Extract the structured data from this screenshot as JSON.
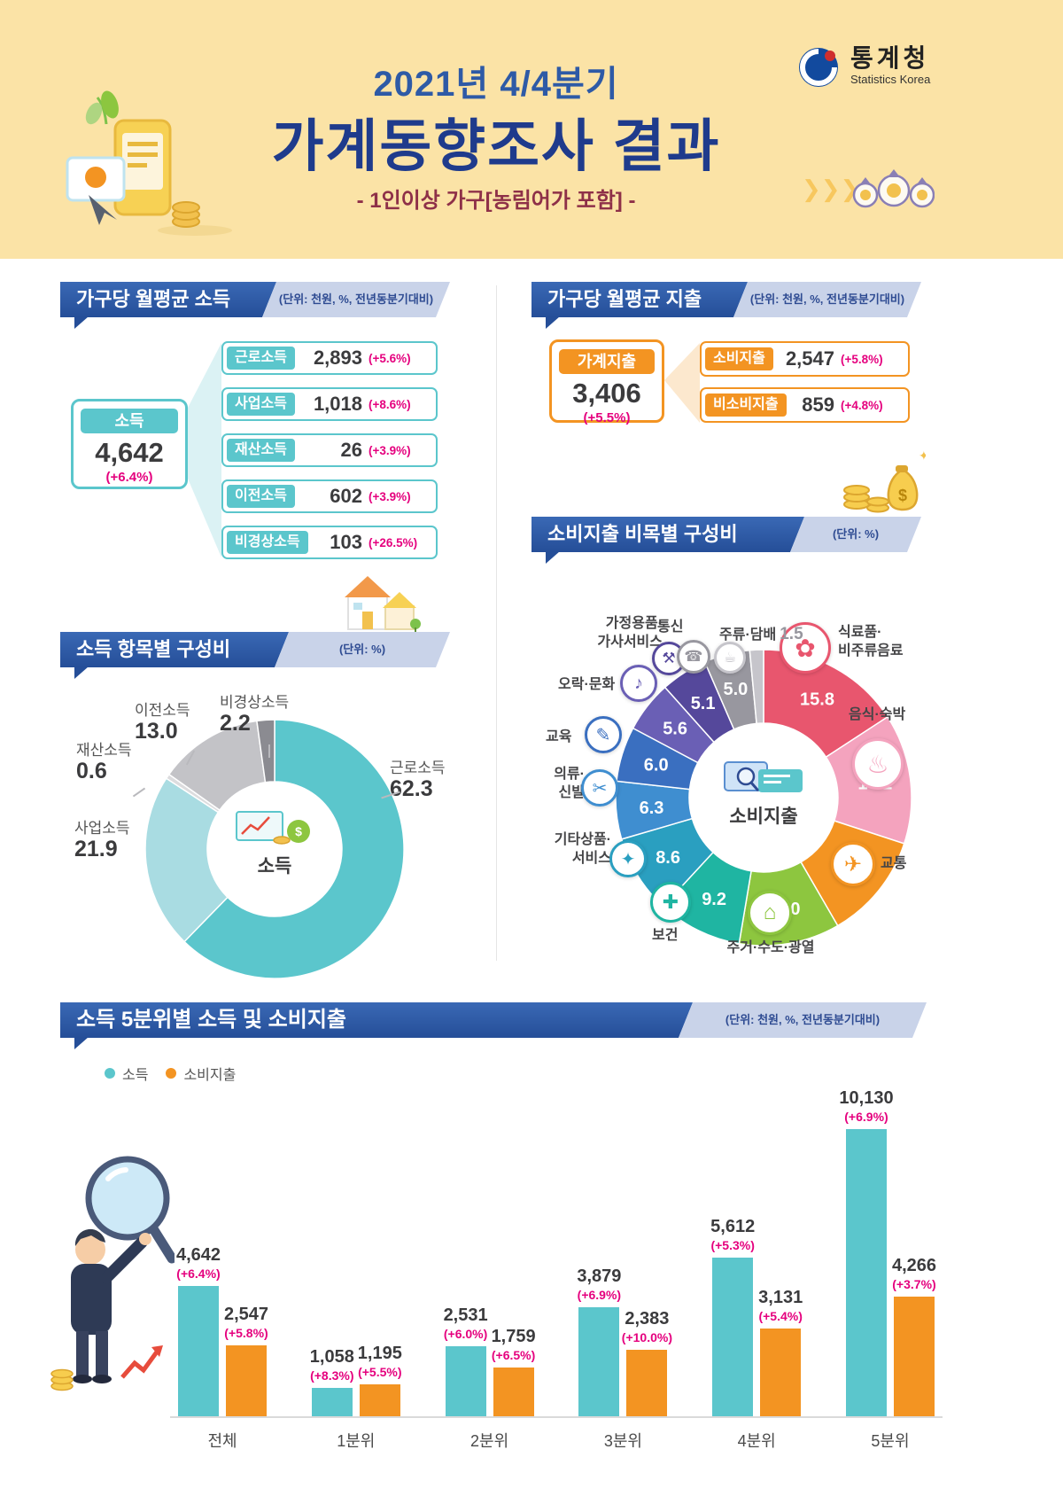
{
  "header": {
    "period": "2021년 4/4분기",
    "title": "가계동향조사 결과",
    "subtitle": "- 1인이상 가구[농림어가 포함] -",
    "agency": {
      "name_ko": "통계청",
      "name_en": "Statistics Korea"
    }
  },
  "colors": {
    "accent_blue": "#254e98",
    "teal": "#5bc6cc",
    "orange": "#f39422",
    "magenta": "#e5007e",
    "header_bg": "#fbe3a6"
  },
  "income_section": {
    "title": "가구당 월평균 소득",
    "unit_note": "(단위: 천원, %, 전년동분기대비)",
    "total": {
      "label": "소득",
      "value": "4,642",
      "change": "(+6.4%)"
    },
    "items": [
      {
        "label": "근로소득",
        "value": "2,893",
        "change": "(+5.6%)"
      },
      {
        "label": "사업소득",
        "value": "1,018",
        "change": "(+8.6%)"
      },
      {
        "label": "재산소득",
        "value": "26",
        "change": "(+3.9%)"
      },
      {
        "label": "이전소득",
        "value": "602",
        "change": "(+3.9%)"
      },
      {
        "label": "비경상소득",
        "value": "103",
        "change": "(+26.5%)"
      }
    ]
  },
  "expenditure_section": {
    "title": "가구당 월평균 지출",
    "unit_note": "(단위: 천원, %, 전년동분기대비)",
    "total": {
      "label": "가계지출",
      "value": "3,406",
      "change": "(+5.5%)"
    },
    "items": [
      {
        "label": "소비지출",
        "value": "2,547",
        "change": "(+5.8%)"
      },
      {
        "label": "비소비지출",
        "value": "859",
        "change": "(+4.8%)"
      }
    ]
  },
  "chart_data": [
    {
      "type": "pie",
      "variant": "donut",
      "title": "소득 항목별 구성비",
      "unit": "(단위: %)",
      "center_label": "소득",
      "items": [
        {
          "label": "근로소득",
          "value": 62.3,
          "display": "62.3",
          "color": "#5bc6cc"
        },
        {
          "label": "사업소득",
          "value": 21.9,
          "display": "21.9",
          "color": "#a9dce2"
        },
        {
          "label": "재산소득",
          "value": 0.6,
          "display": "0.6",
          "color": "#dcdcde"
        },
        {
          "label": "이전소득",
          "value": 13.0,
          "display": "13.0",
          "color": "#c3c3c7"
        },
        {
          "label": "비경상소득",
          "value": 2.2,
          "display": "2.2",
          "color": "#8b8b91"
        }
      ]
    },
    {
      "type": "pie",
      "variant": "donut",
      "title": "소비지출 비목별 구성비",
      "unit": "(단위: %)",
      "center_label": "소비지출",
      "items": [
        {
          "label": "식료품·비주류음료",
          "label_lines": [
            "식료품·",
            "비주류음료"
          ],
          "value": 15.8,
          "display": "15.8",
          "color": "#e8566e",
          "icon": "✿"
        },
        {
          "label": "음식·숙박",
          "value": 14.2,
          "display": "14.2",
          "color": "#f4a3be",
          "icon": "♨"
        },
        {
          "label": "교통",
          "value": 11.6,
          "display": "11.6",
          "color": "#f39422",
          "icon": "✈"
        },
        {
          "label": "주거·수도·광열",
          "value": 11.0,
          "display": "11.0",
          "color": "#8dc63f",
          "icon": "⌂"
        },
        {
          "label": "보건",
          "value": 9.2,
          "display": "9.2",
          "color": "#1fb5a2",
          "icon": "✚"
        },
        {
          "label": "기타상품·서비스",
          "label_lines": [
            "기타상품·",
            "서비스"
          ],
          "value": 8.6,
          "display": "8.6",
          "color": "#2a9fc0",
          "icon": "✦"
        },
        {
          "label": "의류·신발",
          "label_lines": [
            "의류·",
            "신발"
          ],
          "value": 6.3,
          "display": "6.3",
          "color": "#3f8ed0",
          "icon": "✂"
        },
        {
          "label": "교육",
          "value": 6.0,
          "display": "6.0",
          "color": "#3a6fc0",
          "icon": "✎"
        },
        {
          "label": "오락·문화",
          "value": 5.6,
          "display": "5.6",
          "color": "#6a5fb5",
          "icon": "♪"
        },
        {
          "label": "가정용품·가사서비스",
          "label_lines": [
            "가정용품·",
            "가사서비스"
          ],
          "value": 5.1,
          "display": "5.1",
          "color": "#55489b",
          "icon": "⚒"
        },
        {
          "label": "통신",
          "value": 5.0,
          "display": "5.0",
          "color": "#98979f",
          "icon": "☎"
        },
        {
          "label": "주류·담배",
          "value": 1.5,
          "display": "1.5",
          "color": "#c6c5cb",
          "icon": "☕",
          "label_outside": true
        }
      ]
    },
    {
      "type": "bar",
      "title": "소득 5분위별 소득 및 소비지출",
      "unit": "(단위: 천원, %, 전년동분기대비)",
      "categories": [
        "전체",
        "1분위",
        "2분위",
        "3분위",
        "4분위",
        "5분위"
      ],
      "series": [
        {
          "name": "소득",
          "color": "#5bc6cc",
          "values": [
            4642,
            1058,
            2531,
            3879,
            5612,
            10130
          ],
          "display": [
            "4,642",
            "1,058",
            "2,531",
            "3,879",
            "5,612",
            "10,130"
          ],
          "changes": [
            "(+6.4%)",
            "(+8.3%)",
            "(+6.0%)",
            "(+6.9%)",
            "(+5.3%)",
            "(+6.9%)"
          ]
        },
        {
          "name": "소비지출",
          "color": "#f39422",
          "values": [
            2547,
            1195,
            1759,
            2383,
            3131,
            4266
          ],
          "display": [
            "2,547",
            "1,195",
            "1,759",
            "2,383",
            "3,131",
            "4,266"
          ],
          "changes": [
            "(+5.8%)",
            "(+5.5%)",
            "(+6.5%)",
            "(+10.0%)",
            "(+5.4%)",
            "(+3.7%)"
          ]
        }
      ],
      "ylim": [
        0,
        10130
      ],
      "legend_position": "top-left",
      "grid": false
    }
  ]
}
